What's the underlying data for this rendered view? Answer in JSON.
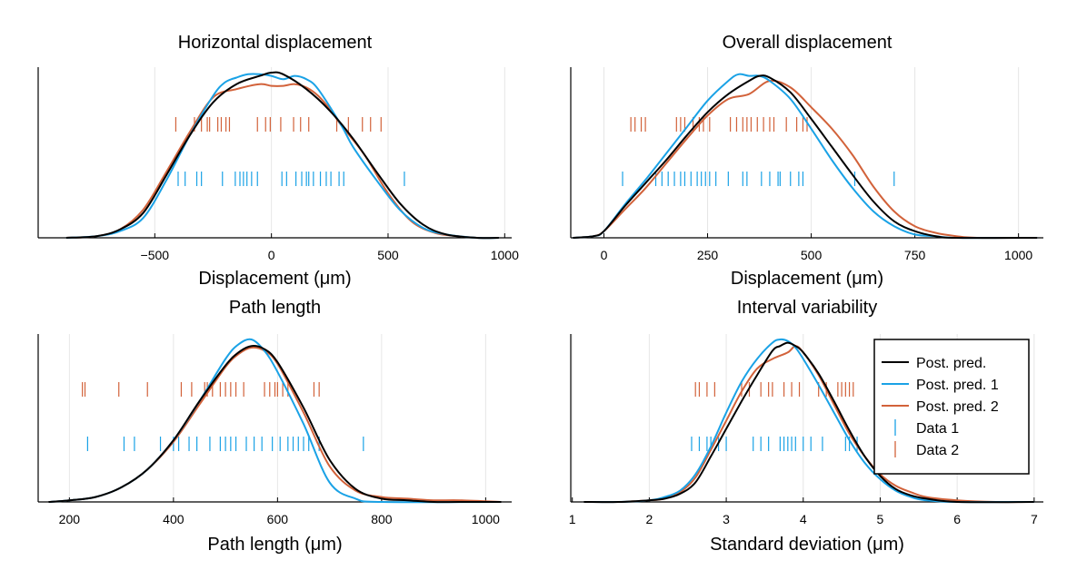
{
  "colors": {
    "post_pred": "#000000",
    "post_pred_1": "#1aa2e6",
    "post_pred_2": "#d2623a",
    "grid": "#e6e6e6"
  },
  "legend": {
    "placement": "top-right of bottom-right panel",
    "items": [
      {
        "label": "Post. pred.",
        "kind": "line",
        "color": "#000000"
      },
      {
        "label": "Post. pred. 1",
        "kind": "line",
        "color": "#1aa2e6"
      },
      {
        "label": "Post. pred. 2",
        "kind": "line",
        "color": "#d2623a"
      },
      {
        "label": "Data 1",
        "kind": "tick",
        "color": "#1aa2e6"
      },
      {
        "label": "Data 2",
        "kind": "tick",
        "color": "#d2623a"
      }
    ]
  },
  "chart_data": [
    {
      "type": "line",
      "title": "Horizontal displacement",
      "xlabel": "Displacement (μm)",
      "xlim": [
        -1000,
        1030
      ],
      "xticks": [
        -500,
        0,
        500,
        1000
      ],
      "xtick_labels": [
        "−500",
        "0",
        "500",
        "1000"
      ],
      "grid": true,
      "series": [
        {
          "key": "post_pred",
          "x": [
            -880,
            -750,
            -650,
            -550,
            -450,
            -350,
            -250,
            -150,
            -50,
            0,
            50,
            150,
            250,
            350,
            450,
            550,
            650,
            750,
            880,
            975
          ],
          "y": [
            0.0,
            0.01,
            0.05,
            0.15,
            0.38,
            0.62,
            0.82,
            0.93,
            0.98,
            1.0,
            0.99,
            0.9,
            0.77,
            0.6,
            0.4,
            0.21,
            0.08,
            0.02,
            0.0,
            0.0
          ]
        },
        {
          "key": "post_pred_1",
          "x": [
            -880,
            -750,
            -650,
            -550,
            -450,
            -350,
            -250,
            -200,
            -150,
            -100,
            -50,
            0,
            50,
            100,
            150,
            200,
            300,
            350,
            450,
            550,
            650,
            750,
            880,
            975
          ],
          "y": [
            0.0,
            0.01,
            0.04,
            0.12,
            0.35,
            0.62,
            0.86,
            0.94,
            0.97,
            0.99,
            0.99,
            0.98,
            0.96,
            0.98,
            0.96,
            0.9,
            0.68,
            0.55,
            0.35,
            0.17,
            0.06,
            0.02,
            0.0,
            0.0
          ]
        },
        {
          "key": "post_pred_2",
          "x": [
            -880,
            -750,
            -650,
            -550,
            -450,
            -350,
            -250,
            -150,
            -50,
            0,
            50,
            100,
            150,
            200,
            250,
            300,
            400,
            500,
            600,
            700,
            800,
            880,
            975
          ],
          "y": [
            0.0,
            0.01,
            0.05,
            0.17,
            0.4,
            0.64,
            0.85,
            0.9,
            0.93,
            0.92,
            0.92,
            0.93,
            0.91,
            0.86,
            0.78,
            0.68,
            0.5,
            0.27,
            0.1,
            0.03,
            0.01,
            0.0,
            0.0
          ]
        }
      ],
      "rug": [
        {
          "key": "post_pred_2",
          "x": [
            -410,
            -330,
            -300,
            -275,
            -265,
            -230,
            -215,
            -195,
            -180,
            -60,
            -25,
            -5,
            40,
            95,
            125,
            160,
            280,
            330,
            390,
            425,
            470
          ]
        },
        {
          "key": "post_pred_1",
          "x": [
            -400,
            -370,
            -320,
            -300,
            -210,
            -155,
            -135,
            -120,
            -105,
            -85,
            -60,
            45,
            65,
            105,
            130,
            150,
            160,
            180,
            210,
            235,
            255,
            290,
            310,
            570
          ]
        }
      ]
    },
    {
      "type": "line",
      "title": "Overall displacement",
      "xlabel": "Displacement (μm)",
      "xlim": [
        -80,
        1060
      ],
      "xticks": [
        0,
        250,
        500,
        750,
        1000
      ],
      "xtick_labels": [
        "0",
        "250",
        "500",
        "750",
        "1000"
      ],
      "grid": true,
      "series": [
        {
          "key": "post_pred",
          "x": [
            -75,
            -25,
            0,
            50,
            100,
            150,
            200,
            250,
            300,
            350,
            375,
            400,
            450,
            500,
            550,
            600,
            650,
            700,
            750,
            800,
            850,
            1045
          ],
          "y": [
            0.0,
            0.01,
            0.04,
            0.19,
            0.33,
            0.47,
            0.62,
            0.76,
            0.87,
            0.95,
            0.98,
            0.97,
            0.88,
            0.72,
            0.55,
            0.38,
            0.22,
            0.1,
            0.04,
            0.01,
            0.0,
            0.0
          ]
        },
        {
          "key": "post_pred_1",
          "x": [
            -75,
            -25,
            0,
            50,
            100,
            150,
            200,
            250,
            300,
            325,
            350,
            375,
            400,
            450,
            500,
            550,
            600,
            650,
            700,
            750,
            800,
            850,
            1045
          ],
          "y": [
            0.0,
            0.01,
            0.04,
            0.2,
            0.35,
            0.51,
            0.67,
            0.83,
            0.95,
            0.99,
            0.98,
            0.98,
            0.95,
            0.84,
            0.66,
            0.47,
            0.3,
            0.16,
            0.07,
            0.02,
            0.01,
            0.0,
            0.0
          ]
        },
        {
          "key": "post_pred_2",
          "x": [
            -75,
            -25,
            0,
            50,
            100,
            150,
            200,
            250,
            300,
            350,
            400,
            450,
            500,
            550,
            600,
            650,
            700,
            750,
            800,
            850,
            900,
            1045
          ],
          "y": [
            0.0,
            0.01,
            0.04,
            0.17,
            0.3,
            0.45,
            0.6,
            0.74,
            0.84,
            0.87,
            0.95,
            0.91,
            0.79,
            0.66,
            0.5,
            0.31,
            0.16,
            0.07,
            0.03,
            0.01,
            0.0,
            0.0
          ]
        }
      ],
      "rug": [
        {
          "key": "post_pred_2",
          "x": [
            65,
            75,
            90,
            100,
            175,
            185,
            195,
            215,
            230,
            240,
            255,
            305,
            320,
            335,
            345,
            355,
            370,
            385,
            400,
            410,
            440,
            465,
            480,
            490
          ]
        },
        {
          "key": "post_pred_1",
          "x": [
            45,
            125,
            140,
            155,
            170,
            185,
            195,
            210,
            225,
            235,
            245,
            255,
            270,
            300,
            335,
            345,
            380,
            400,
            420,
            425,
            450,
            470,
            480,
            605,
            700
          ]
        }
      ]
    },
    {
      "type": "line",
      "title": "Path length",
      "xlabel": "Path length (μm)",
      "xlim": [
        140,
        1050
      ],
      "xticks": [
        200,
        400,
        600,
        800,
        1000
      ],
      "xtick_labels": [
        "200",
        "400",
        "600",
        "800",
        "1000"
      ],
      "grid": true,
      "series": [
        {
          "key": "post_pred",
          "x": [
            160,
            200,
            250,
            300,
            350,
            400,
            450,
            500,
            525,
            550,
            575,
            600,
            650,
            700,
            750,
            800,
            850,
            900,
            950,
            1030
          ],
          "y": [
            0.0,
            0.01,
            0.03,
            0.09,
            0.2,
            0.38,
            0.62,
            0.84,
            0.92,
            0.96,
            0.94,
            0.86,
            0.58,
            0.26,
            0.08,
            0.02,
            0.01,
            0.0,
            0.0,
            0.0
          ]
        },
        {
          "key": "post_pred_1",
          "x": [
            160,
            200,
            250,
            300,
            350,
            400,
            450,
            500,
            525,
            550,
            575,
            600,
            650,
            700,
            750,
            800,
            1030
          ],
          "y": [
            0.0,
            0.01,
            0.03,
            0.09,
            0.2,
            0.38,
            0.62,
            0.88,
            0.97,
            1.0,
            0.93,
            0.8,
            0.48,
            0.12,
            0.02,
            0.0,
            0.0
          ]
        },
        {
          "key": "post_pred_2",
          "x": [
            160,
            200,
            250,
            300,
            350,
            400,
            450,
            500,
            525,
            550,
            575,
            600,
            650,
            700,
            750,
            800,
            850,
            900,
            950,
            1030
          ],
          "y": [
            0.0,
            0.01,
            0.03,
            0.09,
            0.2,
            0.37,
            0.6,
            0.83,
            0.91,
            0.95,
            0.93,
            0.85,
            0.55,
            0.22,
            0.07,
            0.03,
            0.02,
            0.01,
            0.01,
            0.0
          ]
        }
      ],
      "rug": [
        {
          "key": "post_pred_2",
          "x": [
            225,
            230,
            295,
            350,
            415,
            435,
            460,
            465,
            475,
            490,
            500,
            510,
            520,
            535,
            575,
            585,
            595,
            600,
            610,
            620,
            670,
            680
          ]
        },
        {
          "key": "post_pred_1",
          "x": [
            235,
            305,
            325,
            375,
            400,
            410,
            430,
            445,
            470,
            490,
            500,
            510,
            520,
            540,
            555,
            570,
            590,
            605,
            620,
            630,
            640,
            650,
            660,
            680,
            765
          ]
        }
      ]
    },
    {
      "type": "line",
      "title": "Interval variability",
      "xlabel": "Standard deviation (μm)",
      "xlim": [
        0.98,
        7.12
      ],
      "xticks": [
        1,
        2,
        3,
        4,
        5,
        6,
        7
      ],
      "xtick_labels": [
        "1",
        "2",
        "3",
        "4",
        "5",
        "6",
        "7"
      ],
      "grid": true,
      "series": [
        {
          "key": "post_pred",
          "x": [
            1.15,
            1.6,
            2.0,
            2.2,
            2.4,
            2.6,
            2.8,
            3.0,
            3.2,
            3.4,
            3.6,
            3.7,
            3.8,
            3.9,
            4.0,
            4.2,
            4.4,
            4.6,
            4.8,
            5.0,
            5.2,
            5.4,
            5.6,
            6.0,
            7.0
          ],
          "y": [
            0.0,
            0.0,
            0.01,
            0.02,
            0.05,
            0.12,
            0.28,
            0.45,
            0.62,
            0.78,
            0.93,
            0.96,
            0.98,
            0.96,
            0.92,
            0.79,
            0.62,
            0.44,
            0.28,
            0.16,
            0.08,
            0.04,
            0.02,
            0.0,
            0.0
          ]
        },
        {
          "key": "post_pred_1",
          "x": [
            1.15,
            1.6,
            2.0,
            2.2,
            2.4,
            2.6,
            2.8,
            3.0,
            3.2,
            3.4,
            3.6,
            3.7,
            3.8,
            3.9,
            4.0,
            4.2,
            4.4,
            4.6,
            4.8,
            5.0,
            5.2,
            5.4,
            5.6,
            6.0,
            7.0
          ],
          "y": [
            0.0,
            0.0,
            0.01,
            0.03,
            0.07,
            0.17,
            0.34,
            0.55,
            0.74,
            0.88,
            0.98,
            1.0,
            0.99,
            0.95,
            0.88,
            0.72,
            0.55,
            0.38,
            0.24,
            0.14,
            0.07,
            0.03,
            0.01,
            0.0,
            0.0
          ]
        },
        {
          "key": "post_pred_2",
          "x": [
            1.15,
            1.6,
            2.0,
            2.2,
            2.4,
            2.6,
            2.8,
            3.0,
            3.2,
            3.4,
            3.6,
            3.8,
            3.9,
            4.0,
            4.2,
            4.4,
            4.6,
            4.8,
            5.0,
            5.2,
            5.4,
            5.6,
            6.0,
            6.5,
            7.0
          ],
          "y": [
            0.0,
            0.0,
            0.01,
            0.02,
            0.06,
            0.15,
            0.32,
            0.5,
            0.68,
            0.82,
            0.88,
            0.92,
            0.96,
            0.92,
            0.78,
            0.6,
            0.42,
            0.28,
            0.17,
            0.1,
            0.06,
            0.03,
            0.01,
            0.0,
            0.0
          ]
        }
      ],
      "rug": [
        {
          "key": "post_pred_2",
          "x": [
            2.6,
            2.65,
            2.75,
            2.85,
            3.2,
            3.3,
            3.45,
            3.55,
            3.6,
            3.75,
            3.85,
            3.95,
            4.2,
            4.3,
            4.45,
            4.5,
            4.55,
            4.6,
            4.65
          ]
        },
        {
          "key": "post_pred_1",
          "x": [
            2.55,
            2.65,
            2.75,
            2.8,
            2.9,
            3.0,
            3.35,
            3.45,
            3.55,
            3.7,
            3.75,
            3.8,
            3.85,
            3.9,
            4.0,
            4.1,
            4.25,
            4.55,
            4.6,
            4.7
          ]
        }
      ]
    }
  ]
}
